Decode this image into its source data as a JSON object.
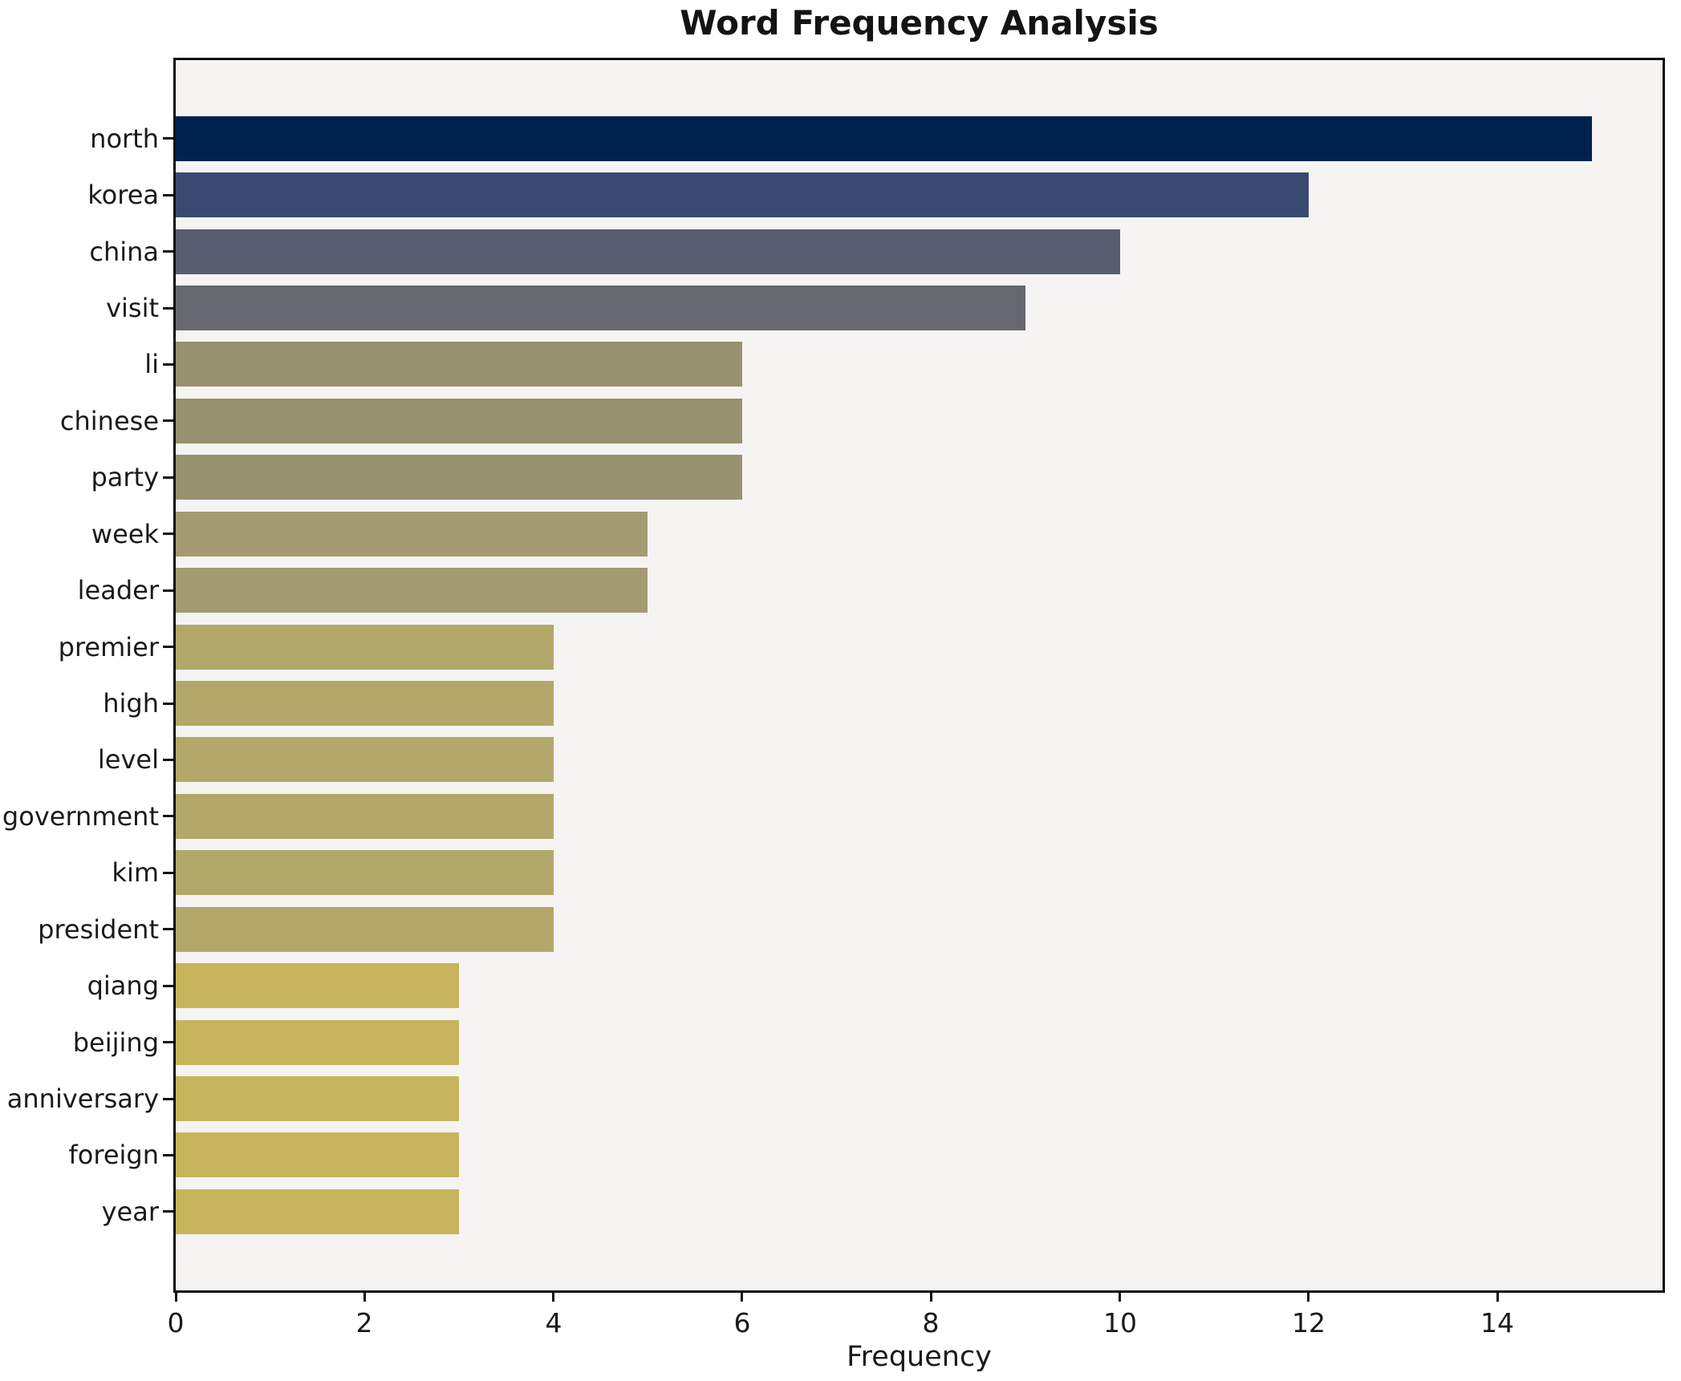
{
  "chart_data": {
    "type": "bar",
    "orientation": "horizontal",
    "title": "Word Frequency Analysis",
    "xlabel": "Frequency",
    "ylabel": "",
    "categories": [
      "north",
      "korea",
      "china",
      "visit",
      "li",
      "chinese",
      "party",
      "week",
      "leader",
      "premier",
      "high",
      "level",
      "government",
      "kim",
      "president",
      "qiang",
      "beijing",
      "anniversary",
      "foreign",
      "year"
    ],
    "values": [
      15,
      12,
      10,
      9,
      6,
      6,
      6,
      5,
      5,
      4,
      4,
      4,
      4,
      4,
      4,
      3,
      3,
      3,
      3,
      3
    ],
    "bar_colors": [
      "#00224e",
      "#3a4a70",
      "#565d6e",
      "#67686f",
      "#97916f",
      "#97916f",
      "#97916f",
      "#a49b72",
      "#a49b72",
      "#b3a86a",
      "#b3a86a",
      "#b3a86a",
      "#b3a86a",
      "#b3a86a",
      "#b3a86a",
      "#c8b45d",
      "#c8b45d",
      "#c8b45d",
      "#c8b45d",
      "#c8b45d"
    ],
    "xlim": [
      0,
      15.75
    ],
    "x_ticks": [
      0,
      2,
      4,
      6,
      8,
      10,
      12,
      14
    ],
    "grid": false,
    "legend": null,
    "plot_background": "#f5f4f2",
    "figure_background": "#ffffff"
  }
}
